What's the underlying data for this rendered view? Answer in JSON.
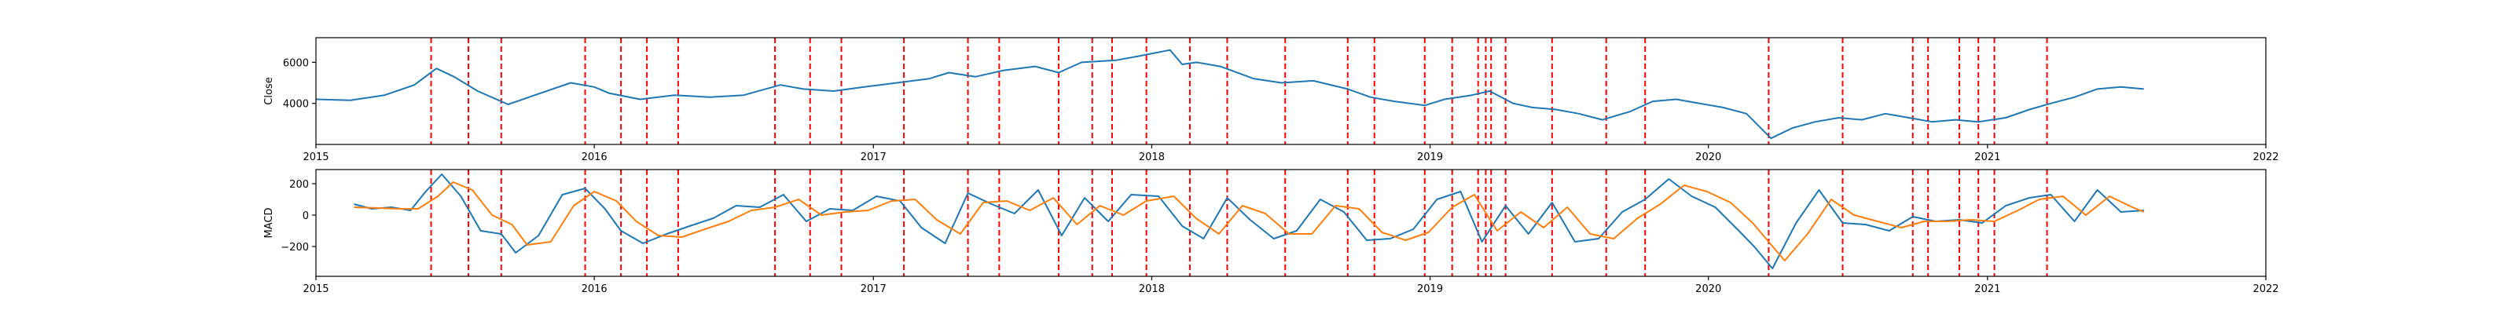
{
  "colors": {
    "close_line": "#1f77b4",
    "macd_line": "#1f77b4",
    "signal_line": "#ff7f0e",
    "event_line": "#ff0000",
    "axis": "#000000",
    "background": "#ffffff"
  },
  "chart_data": [
    {
      "type": "line",
      "ylabel": "Close",
      "xlim": [
        "2015-01-01",
        "2022-01-01"
      ],
      "ylim": [
        2000,
        7200
      ],
      "x_ticks": [
        "2015",
        "2016",
        "2017",
        "2018",
        "2019",
        "2020",
        "2021",
        "2022"
      ],
      "y_ticks": [
        4000,
        6000
      ],
      "y_tick_labels": [
        "4000",
        "6000"
      ],
      "series": [
        {
          "x": [
            "2015-01-01",
            "2015-02-15",
            "2015-04-01",
            "2015-05-10",
            "2015-06-08",
            "2015-07-01",
            "2015-08-01",
            "2015-09-10",
            "2015-10-15",
            "2015-12-01",
            "2016-01-01",
            "2016-01-20",
            "2016-03-01",
            "2016-04-15",
            "2016-06-01",
            "2016-07-15",
            "2016-09-01",
            "2016-10-01",
            "2016-11-10",
            "2016-12-20",
            "2017-02-01",
            "2017-03-15",
            "2017-04-10",
            "2017-05-15",
            "2017-06-20",
            "2017-08-01",
            "2017-09-01",
            "2017-10-01",
            "2017-11-15",
            "2017-12-15",
            "2018-01-25",
            "2018-02-10",
            "2018-03-01",
            "2018-04-01",
            "2018-05-15",
            "2018-06-20",
            "2018-08-01",
            "2018-09-15",
            "2018-10-15",
            "2018-11-15",
            "2018-12-25",
            "2019-01-20",
            "2019-02-25",
            "2019-03-20",
            "2019-04-20",
            "2019-05-15",
            "2019-06-15",
            "2019-07-15",
            "2019-08-15",
            "2019-09-20",
            "2019-10-20",
            "2019-11-20",
            "2019-12-20",
            "2020-01-20",
            "2020-02-20",
            "2020-03-23",
            "2020-04-20",
            "2020-05-20",
            "2020-06-20",
            "2020-07-20",
            "2020-08-20",
            "2020-09-20",
            "2020-10-20",
            "2020-11-20",
            "2020-12-20",
            "2021-01-25",
            "2021-02-25",
            "2021-03-25",
            "2021-04-25",
            "2021-05-25",
            "2021-06-25",
            "2021-07-25"
          ],
          "values": [
            4200,
            4150,
            4400,
            4900,
            5700,
            5300,
            4600,
            3950,
            4400,
            5000,
            4800,
            4500,
            4200,
            4400,
            4300,
            4400,
            4900,
            4700,
            4600,
            4800,
            5000,
            5200,
            5500,
            5300,
            5600,
            5800,
            5500,
            6000,
            6100,
            6300,
            6600,
            5900,
            6000,
            5800,
            5200,
            5000,
            5100,
            4700,
            4300,
            4100,
            3900,
            4200,
            4400,
            4600,
            4000,
            3800,
            3700,
            3500,
            3200,
            3600,
            4100,
            4200,
            4000,
            3800,
            3500,
            2300,
            2800,
            3100,
            3300,
            3200,
            3500,
            3300,
            3100,
            3200,
            3100,
            3300,
            3700,
            4000,
            4300,
            4700,
            4800,
            4700
          ]
        }
      ]
    },
    {
      "type": "line",
      "ylabel": "MACD",
      "xlim": [
        "2015-01-01",
        "2022-01-01"
      ],
      "ylim": [
        -390,
        290
      ],
      "x_ticks": [
        "2015",
        "2016",
        "2017",
        "2018",
        "2019",
        "2020",
        "2021",
        "2022"
      ],
      "y_ticks": [
        -200,
        0,
        200
      ],
      "y_tick_labels": [
        "−200",
        "0",
        "200"
      ],
      "series": [
        {
          "x": [
            "2015-02-20",
            "2015-03-15",
            "2015-04-10",
            "2015-05-05",
            "2015-05-25",
            "2015-06-15",
            "2015-07-10",
            "2015-08-05",
            "2015-09-01",
            "2015-09-20",
            "2015-10-20",
            "2015-11-20",
            "2015-12-20",
            "2016-01-15",
            "2016-02-05",
            "2016-03-05",
            "2016-04-05",
            "2016-05-05",
            "2016-06-05",
            "2016-07-05",
            "2016-08-05",
            "2016-09-05",
            "2016-10-05",
            "2016-11-05",
            "2016-12-05",
            "2017-01-05",
            "2017-02-05",
            "2017-03-05",
            "2017-04-05",
            "2017-05-05",
            "2017-06-05",
            "2017-07-05",
            "2017-08-05",
            "2017-09-05",
            "2017-10-05",
            "2017-11-05",
            "2017-12-05",
            "2018-01-10",
            "2018-02-10",
            "2018-03-10",
            "2018-04-10",
            "2018-05-10",
            "2018-06-10",
            "2018-07-10",
            "2018-08-10",
            "2018-09-10",
            "2018-10-10",
            "2018-11-10",
            "2018-12-10",
            "2019-01-10",
            "2019-02-10",
            "2019-03-10",
            "2019-04-10",
            "2019-05-10",
            "2019-06-10",
            "2019-07-10",
            "2019-08-10",
            "2019-09-10",
            "2019-10-10",
            "2019-11-10",
            "2019-12-10",
            "2020-01-10",
            "2020-02-10",
            "2020-03-01",
            "2020-03-25",
            "2020-04-25",
            "2020-05-25",
            "2020-06-25",
            "2020-07-25",
            "2020-08-25",
            "2020-09-25",
            "2020-10-25",
            "2020-11-25",
            "2020-12-25",
            "2021-01-25",
            "2021-02-25",
            "2021-03-25",
            "2021-04-25",
            "2021-05-25",
            "2021-06-25",
            "2021-07-25"
          ],
          "values": [
            70,
            40,
            50,
            30,
            150,
            260,
            120,
            -100,
            -120,
            -240,
            -130,
            130,
            170,
            40,
            -100,
            -180,
            -120,
            -70,
            -20,
            60,
            50,
            130,
            -40,
            40,
            30,
            120,
            90,
            -80,
            -180,
            140,
            70,
            10,
            160,
            -130,
            110,
            -40,
            130,
            120,
            -70,
            -150,
            110,
            -30,
            -150,
            -100,
            100,
            20,
            -160,
            -150,
            -90,
            100,
            150,
            -170,
            60,
            -120,
            80,
            -170,
            -150,
            20,
            100,
            230,
            120,
            50,
            -100,
            -200,
            -340,
            -50,
            160,
            -50,
            -60,
            -100,
            -10,
            -40,
            -30,
            -50,
            60,
            110,
            130,
            -40,
            160,
            20,
            30
          ]
        },
        {
          "x": [
            "2015-02-20",
            "2015-03-25",
            "2015-04-20",
            "2015-05-15",
            "2015-06-10",
            "2015-06-30",
            "2015-07-25",
            "2015-08-20",
            "2015-09-15",
            "2015-10-05",
            "2015-11-05",
            "2015-12-05",
            "2016-01-01",
            "2016-01-30",
            "2016-02-25",
            "2016-03-25",
            "2016-04-25",
            "2016-05-25",
            "2016-06-25",
            "2016-07-25",
            "2016-08-25",
            "2016-09-25",
            "2016-10-25",
            "2016-11-25",
            "2016-12-25",
            "2017-01-25",
            "2017-02-25",
            "2017-03-25",
            "2017-04-25",
            "2017-05-25",
            "2017-06-25",
            "2017-07-25",
            "2017-08-25",
            "2017-09-25",
            "2017-10-25",
            "2017-11-25",
            "2017-12-25",
            "2018-01-30",
            "2018-02-28",
            "2018-03-30",
            "2018-04-30",
            "2018-05-30",
            "2018-06-30",
            "2018-07-30",
            "2018-08-30",
            "2018-09-30",
            "2018-10-30",
            "2018-11-30",
            "2018-12-30",
            "2019-01-30",
            "2019-02-28",
            "2019-03-30",
            "2019-04-30",
            "2019-05-30",
            "2019-06-30",
            "2019-07-30",
            "2019-08-30",
            "2019-09-30",
            "2019-10-30",
            "2019-11-30",
            "2019-12-30",
            "2020-01-30",
            "2020-02-28",
            "2020-03-20",
            "2020-04-10",
            "2020-05-10",
            "2020-06-10",
            "2020-07-10",
            "2020-08-10",
            "2020-09-10",
            "2020-10-10",
            "2020-11-10",
            "2020-12-10",
            "2021-01-10",
            "2021-02-10",
            "2021-03-10",
            "2021-04-10",
            "2021-05-10",
            "2021-06-10",
            "2021-07-10",
            "2021-07-25"
          ],
          "values": [
            50,
            45,
            40,
            40,
            120,
            210,
            160,
            0,
            -60,
            -190,
            -170,
            60,
            150,
            90,
            -40,
            -130,
            -140,
            -90,
            -40,
            30,
            50,
            100,
            0,
            20,
            30,
            90,
            100,
            -30,
            -120,
            80,
            90,
            30,
            110,
            -60,
            60,
            0,
            90,
            120,
            -20,
            -120,
            60,
            10,
            -120,
            -120,
            60,
            40,
            -110,
            -160,
            -110,
            50,
            130,
            -100,
            20,
            -80,
            50,
            -120,
            -150,
            -20,
            70,
            190,
            150,
            80,
            -50,
            -170,
            -290,
            -120,
            100,
            0,
            -40,
            -80,
            -40,
            -40,
            -30,
            -40,
            30,
            100,
            120,
            0,
            120,
            50,
            20
          ]
        }
      ]
    }
  ],
  "event_dates": [
    "2015-06-01",
    "2015-07-20",
    "2015-09-01",
    "2015-12-20",
    "2016-02-05",
    "2016-03-10",
    "2016-04-20",
    "2016-08-25",
    "2016-10-10",
    "2016-11-20",
    "2017-02-10",
    "2017-05-05",
    "2017-06-15",
    "2017-09-01",
    "2017-10-15",
    "2017-11-10",
    "2017-12-25",
    "2018-02-20",
    "2018-04-10",
    "2018-06-25",
    "2018-09-15",
    "2018-10-20",
    "2018-12-25",
    "2019-01-30",
    "2019-03-05",
    "2019-03-15",
    "2019-03-22",
    "2019-04-10",
    "2019-06-10",
    "2019-08-20",
    "2019-10-10",
    "2020-03-20",
    "2020-06-25",
    "2020-09-25",
    "2020-10-15",
    "2020-11-25",
    "2020-12-20",
    "2021-01-10",
    "2021-03-20"
  ]
}
